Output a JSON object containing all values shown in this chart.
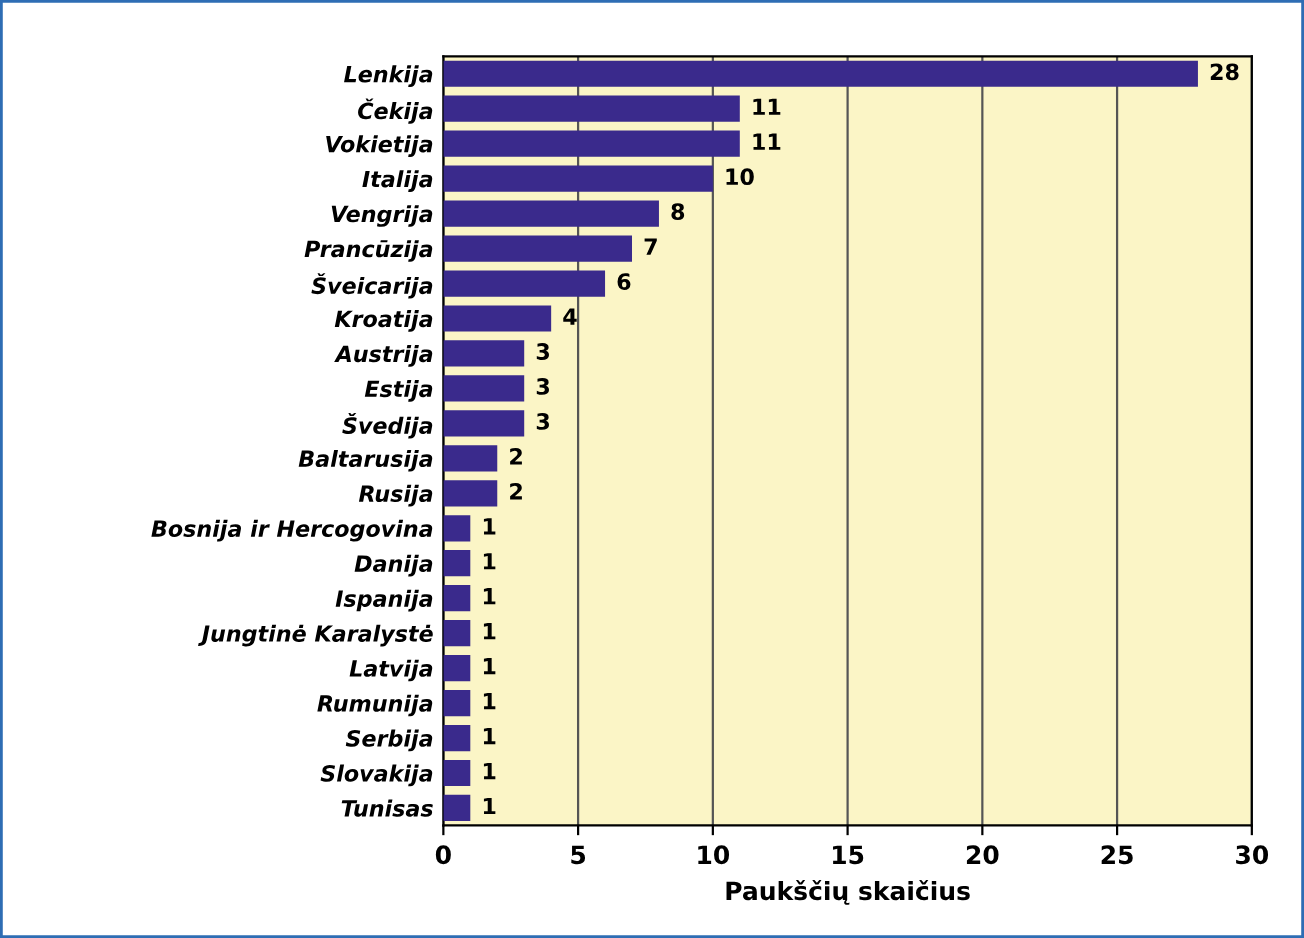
{
  "chart_data": {
    "type": "bar",
    "orientation": "horizontal",
    "xlabel": "Paukščių skaičius",
    "categories": [
      "Lenkija",
      "Čekija",
      "Vokietija",
      "Italija",
      "Vengrija",
      "Prancūzija",
      "Šveicarija",
      "Kroatija",
      "Austrija",
      "Estija",
      "Švedija",
      "Baltarusija",
      "Rusija",
      "Bosnija ir Hercogovina",
      "Danija",
      "Ispanija",
      "Jungtinė Karalystė",
      "Latvija",
      "Rumunija",
      "Serbija",
      "Slovakija",
      "Tunisas"
    ],
    "values": [
      28,
      11,
      11,
      10,
      8,
      7,
      6,
      4,
      3,
      3,
      3,
      2,
      2,
      1,
      1,
      1,
      1,
      1,
      1,
      1,
      1,
      1
    ],
    "color": "#3a2a8c",
    "data_labels": true,
    "grid": "x",
    "xlim": [
      0,
      30
    ],
    "xticks": [
      0,
      5,
      10,
      15,
      20,
      25,
      30
    ]
  }
}
